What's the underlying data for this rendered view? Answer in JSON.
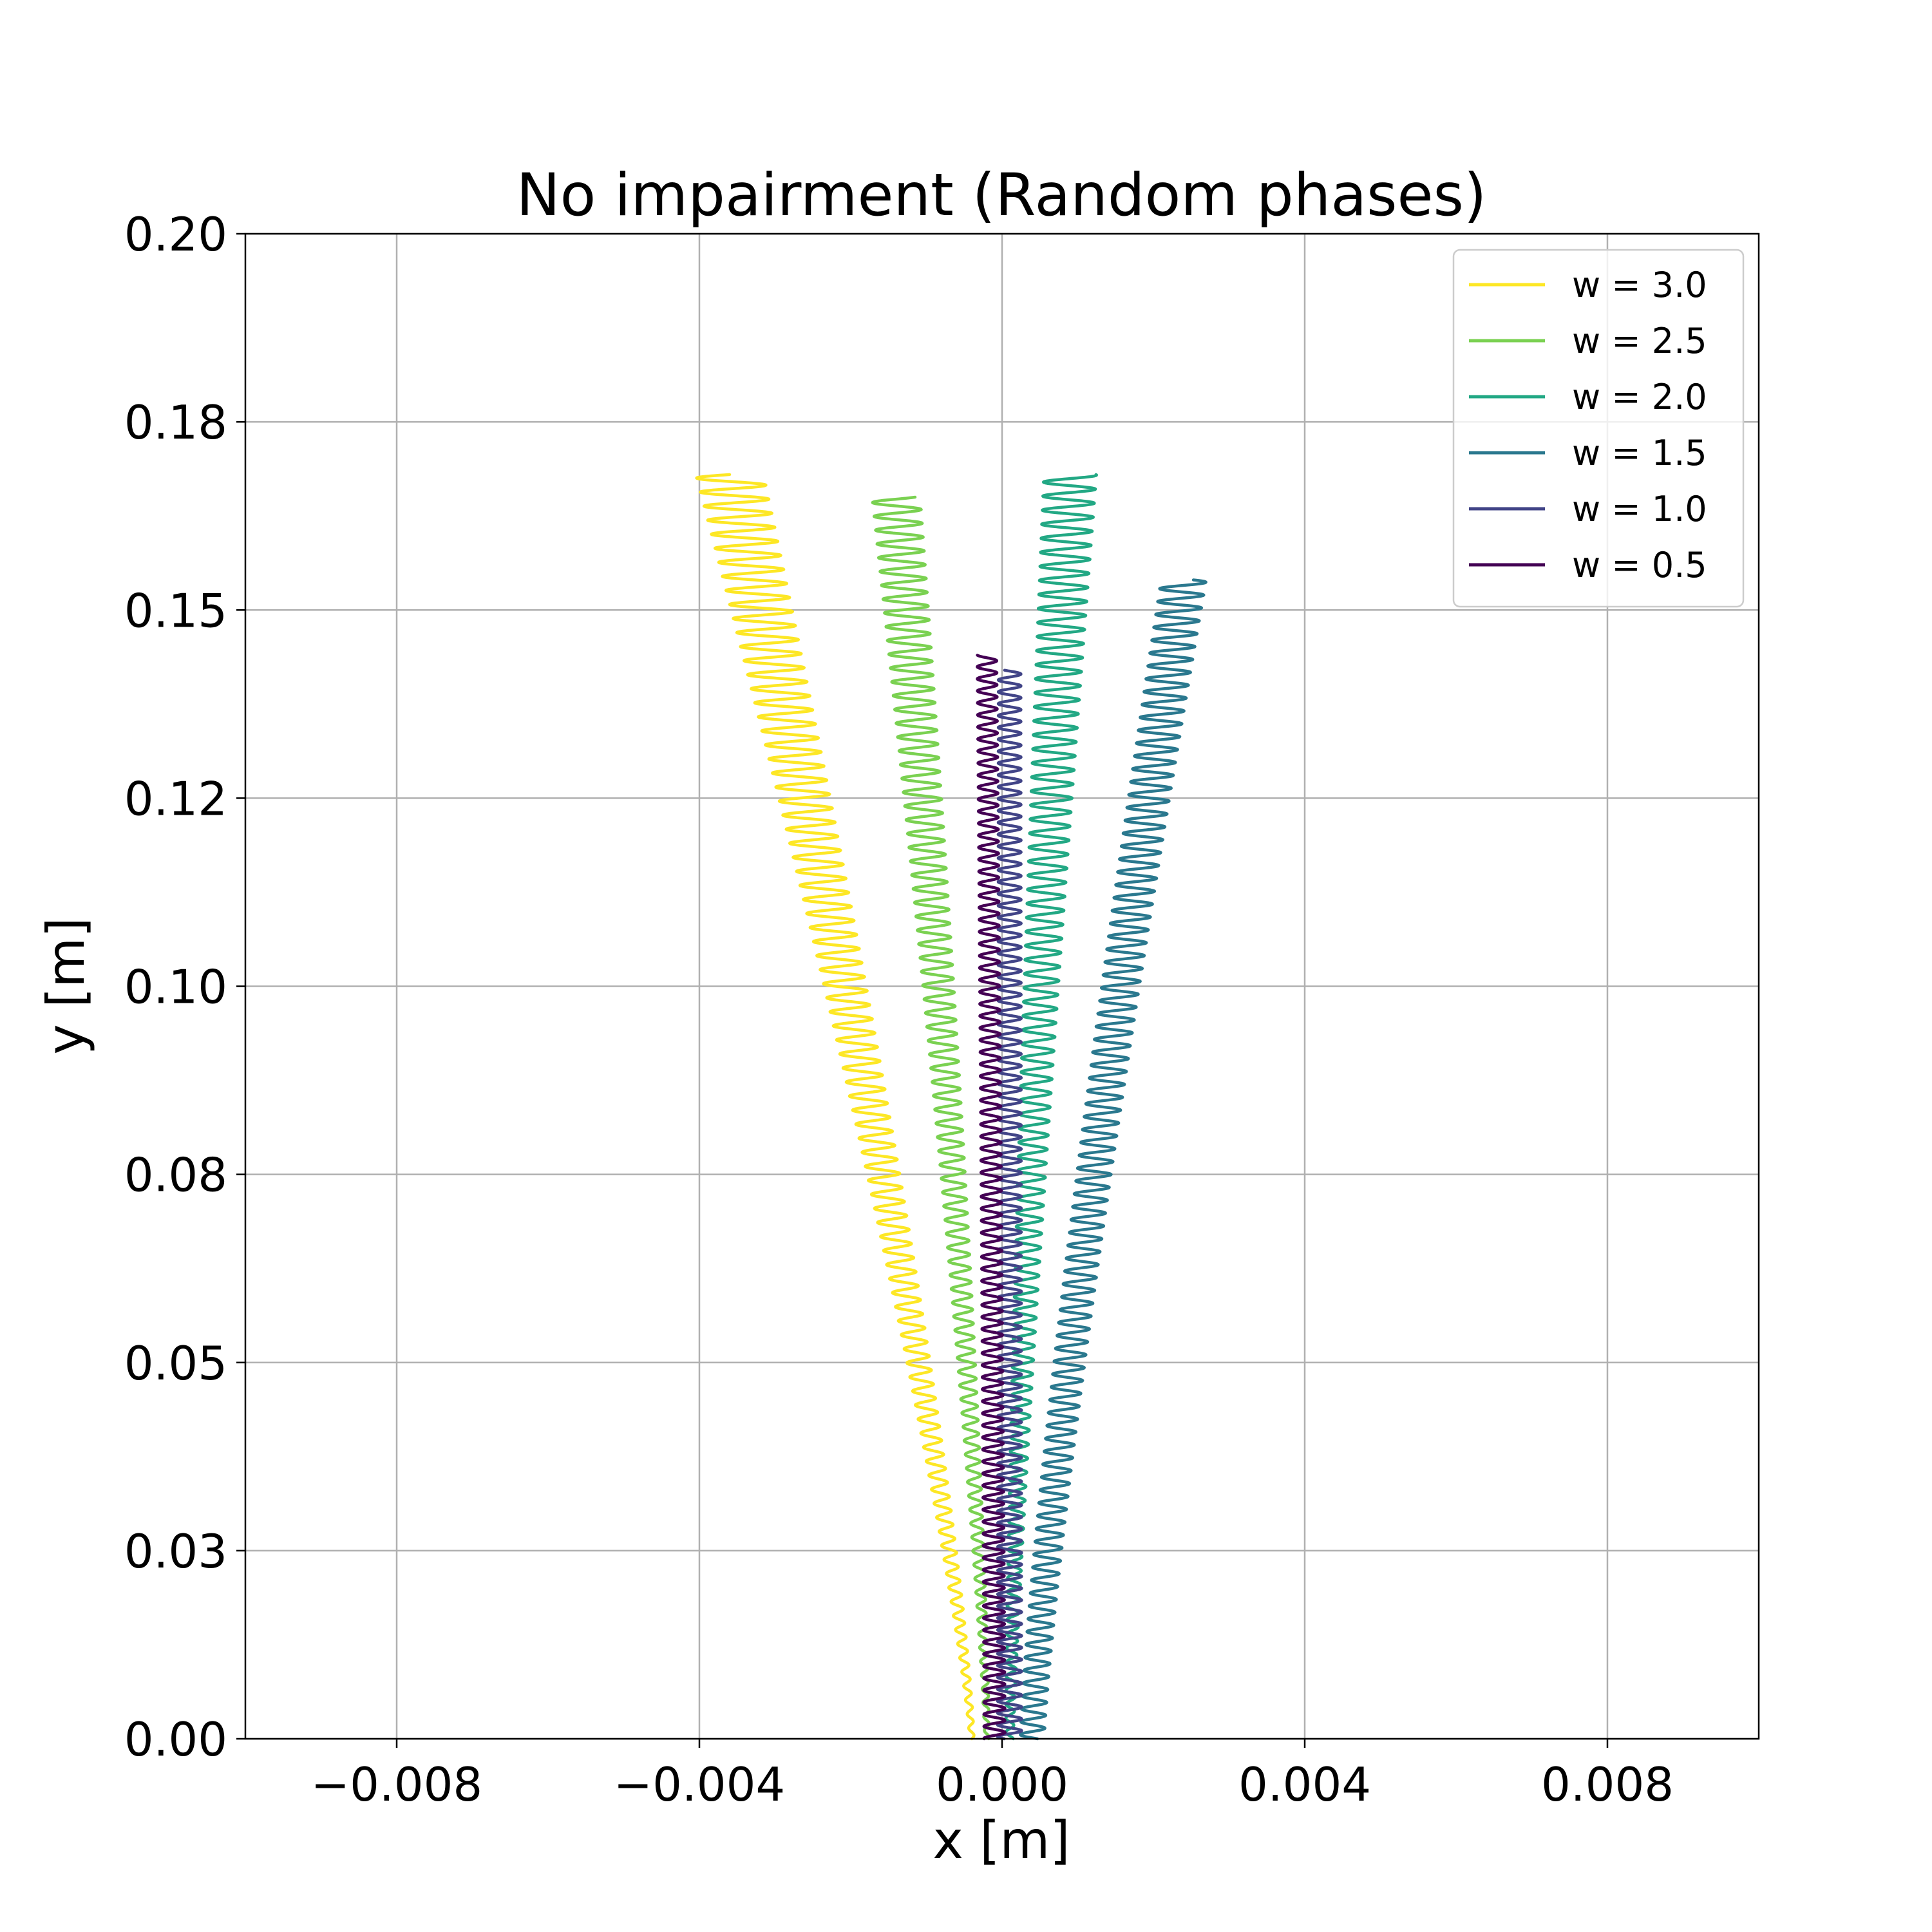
{
  "chart_data": {
    "type": "line",
    "title": "No impairment (Random phases)",
    "xlabel": "x [m]",
    "ylabel": "y [m]",
    "xlim": [
      -0.01,
      0.01
    ],
    "ylim": [
      0.0,
      0.2
    ],
    "grid": true,
    "legend_position": "upper right",
    "x_ticks": [
      -0.008,
      -0.004,
      0.0,
      0.004,
      0.008
    ],
    "x_tick_labels": [
      "−0.008",
      "−0.004",
      "0.000",
      "0.004",
      "0.008"
    ],
    "y_ticks": [
      0.0,
      0.025,
      0.05,
      0.075,
      0.1,
      0.125,
      0.15,
      0.175,
      0.2
    ],
    "y_tick_labels": [
      "0.00",
      "0.03",
      "0.05",
      "0.08",
      "0.10",
      "0.12",
      "0.15",
      "0.18",
      "0.20"
    ],
    "series": [
      {
        "name": "w = 3.0",
        "color": "#fde725",
        "start_x": -0.0004,
        "end_x": -0.0036,
        "end_y": 0.168,
        "amplitude_start": 3e-05,
        "amplitude_end": 0.00045,
        "cycles": 90
      },
      {
        "name": "w = 2.5",
        "color": "#7ad151",
        "start_x": -0.0002,
        "end_x": -0.0014,
        "end_y": 0.165,
        "amplitude_start": 3e-05,
        "amplitude_end": 0.00032,
        "cycles": 90
      },
      {
        "name": "w = 2.0",
        "color": "#22a884",
        "start_x": 0.0001,
        "end_x": 0.0009,
        "end_y": 0.168,
        "amplitude_start": 5e-05,
        "amplitude_end": 0.00035,
        "cycles": 90
      },
      {
        "name": "w = 1.5",
        "color": "#2a788e",
        "start_x": 0.0004,
        "end_x": 0.0024,
        "end_y": 0.154,
        "amplitude_start": 0.00016,
        "amplitude_end": 0.0003,
        "cycles": 90
      },
      {
        "name": "w = 1.0",
        "color": "#414487",
        "start_x": 0.0001,
        "end_x": 0.0001,
        "end_y": 0.142,
        "amplitude_start": 0.00016,
        "amplitude_end": 0.00015,
        "cycles": 90
      },
      {
        "name": "w = 0.5",
        "color": "#440154",
        "start_x": -0.0001,
        "end_x": -0.0002,
        "end_y": 0.144,
        "amplitude_start": 0.00014,
        "amplitude_end": 0.00013,
        "cycles": 90
      }
    ]
  }
}
